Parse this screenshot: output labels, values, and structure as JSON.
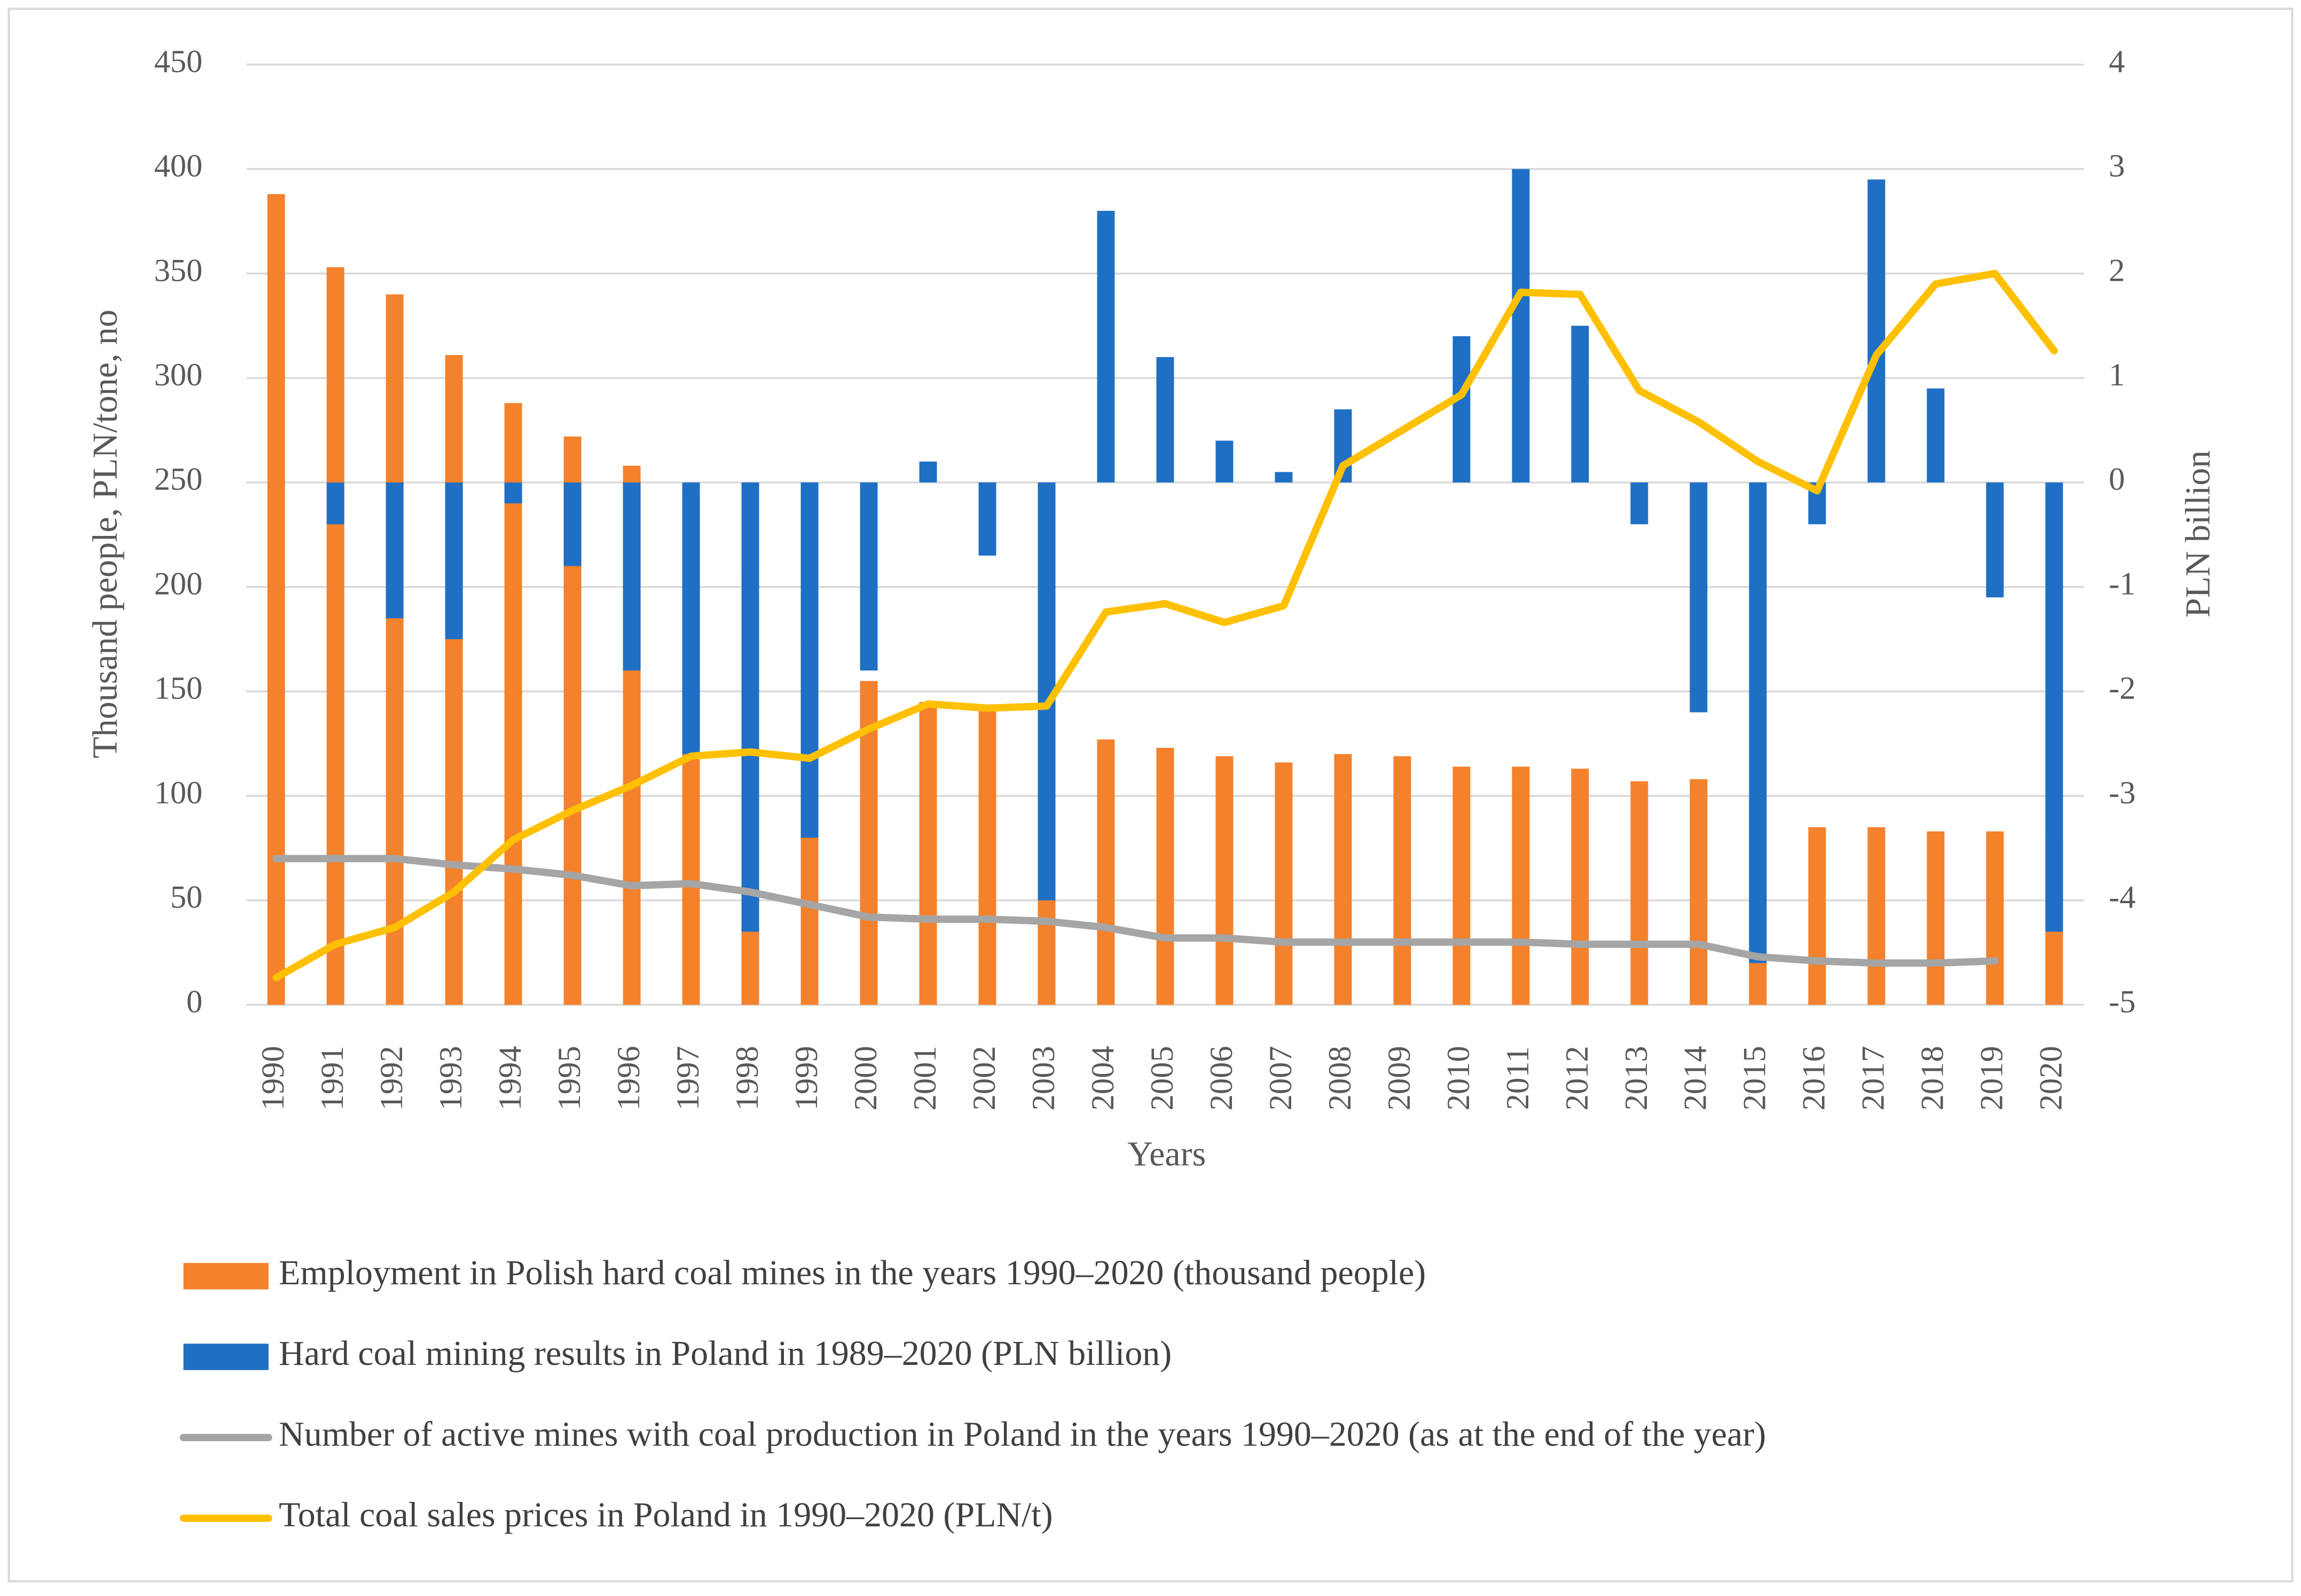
{
  "chart_data": {
    "type": "bar",
    "x_label": "Years",
    "y_label": "Thousand people, PLN/tone, no",
    "y2_label": "PLN billion",
    "categories": [
      "1990",
      "1991",
      "1992",
      "1993",
      "1994",
      "1995",
      "1996",
      "1997",
      "1998",
      "1999",
      "2000",
      "2001",
      "2002",
      "2003",
      "2004",
      "2005",
      "2006",
      "2007",
      "2008",
      "2009",
      "2010",
      "2011",
      "2012",
      "2013",
      "2014",
      "2015",
      "2016",
      "2017",
      "2018",
      "2019",
      "2020"
    ],
    "ylim": [
      0,
      450
    ],
    "yticks": [
      0,
      50,
      100,
      150,
      200,
      250,
      300,
      350,
      400,
      450
    ],
    "y2lim": [
      -5,
      4
    ],
    "y2ticks": [
      -5,
      -4,
      -3,
      -2,
      -1,
      0,
      1,
      2,
      3,
      4
    ],
    "grid": true,
    "legend": "bottom",
    "series": [
      {
        "name": "Employment in Polish hard coal mines in the years 1990–2020 (thousand people)",
        "type": "bar",
        "color": "#f4812b",
        "values": [
          388,
          353,
          340,
          311,
          288,
          272,
          258,
          243,
          208,
          173,
          155,
          145,
          141,
          130,
          127,
          123,
          119,
          116,
          120,
          119,
          114,
          114,
          113,
          107,
          108,
          99,
          85,
          85,
          83,
          83,
          79
        ]
      },
      {
        "name": "Hard coal mining results in Poland in 1989–2020 (PLN billion)",
        "type": "bar",
        "axis": "y2",
        "color": "#1f6fc5",
        "values": [
          null,
          -0.4,
          -1.3,
          -1.5,
          -0.2,
          -0.8,
          -1.8,
          -2.6,
          -4.3,
          -3.4,
          -1.8,
          0.2,
          -0.7,
          -4.0,
          2.6,
          1.2,
          0.4,
          0.1,
          0.7,
          null,
          1.4,
          3.0,
          1.5,
          -0.4,
          -2.2,
          -4.6,
          -0.4,
          2.9,
          0.9,
          -1.1,
          -4.3
        ]
      },
      {
        "name": "Number of active mines with coal production in Poland in  the years 1990–2020 (as at the end of the year)",
        "type": "line",
        "color": "#a5a5a5",
        "values": [
          70,
          70,
          70,
          67,
          65,
          62,
          57,
          58,
          54,
          48,
          42,
          41,
          41,
          40,
          37,
          32,
          32,
          30,
          30,
          30,
          30,
          30,
          29,
          29,
          29,
          23,
          21,
          20,
          20,
          21,
          null
        ]
      },
      {
        "name": "Total coal sales prices in Poland in 1990–2020 (PLN/t)",
        "type": "line",
        "color": "#ffc000",
        "values": [
          13,
          29,
          37,
          54,
          79,
          93,
          105,
          119,
          121,
          118,
          132,
          144,
          142,
          143,
          188,
          192,
          183,
          191,
          258,
          275,
          292,
          341,
          340,
          294,
          279,
          260,
          246,
          311,
          345,
          350,
          313
        ]
      }
    ]
  }
}
